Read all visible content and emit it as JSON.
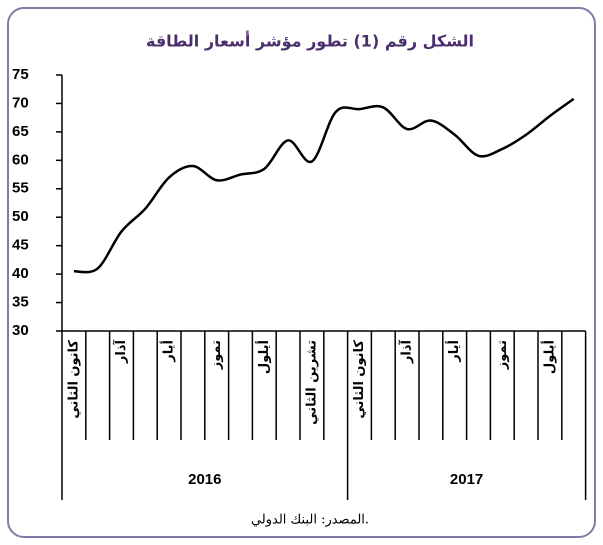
{
  "chart_data": {
    "type": "line",
    "title": "الشكل رقم (1) تطور مؤشر أسعار الطاقة",
    "source": "المصدر: البنك الدولي.",
    "categories": [
      "كانون الثاني",
      null,
      "آذار",
      null,
      "أيار",
      null,
      "تموز",
      null,
      "أيلول",
      null,
      "تشرين الثاني",
      null,
      "كانون الثاني",
      null,
      "آذار",
      null,
      "أيار",
      null,
      "تموز",
      null,
      "أيلول",
      null
    ],
    "groups": [
      "2016",
      "2017"
    ],
    "series": [
      {
        "name": "مؤشر أسعار الطاقة",
        "color": "#000000",
        "values": [
          40.5,
          41,
          47.5,
          51.5,
          57,
          59,
          56.5,
          57.5,
          58.5,
          63.5,
          59.8,
          68.5,
          69,
          69.3,
          65.5,
          67,
          64.5,
          60.8,
          62,
          64.5,
          67.8,
          70.8
        ]
      }
    ],
    "ylim": [
      30,
      75
    ],
    "yticks": [
      30,
      35,
      40,
      45,
      50,
      55,
      60,
      65,
      70,
      75
    ]
  }
}
